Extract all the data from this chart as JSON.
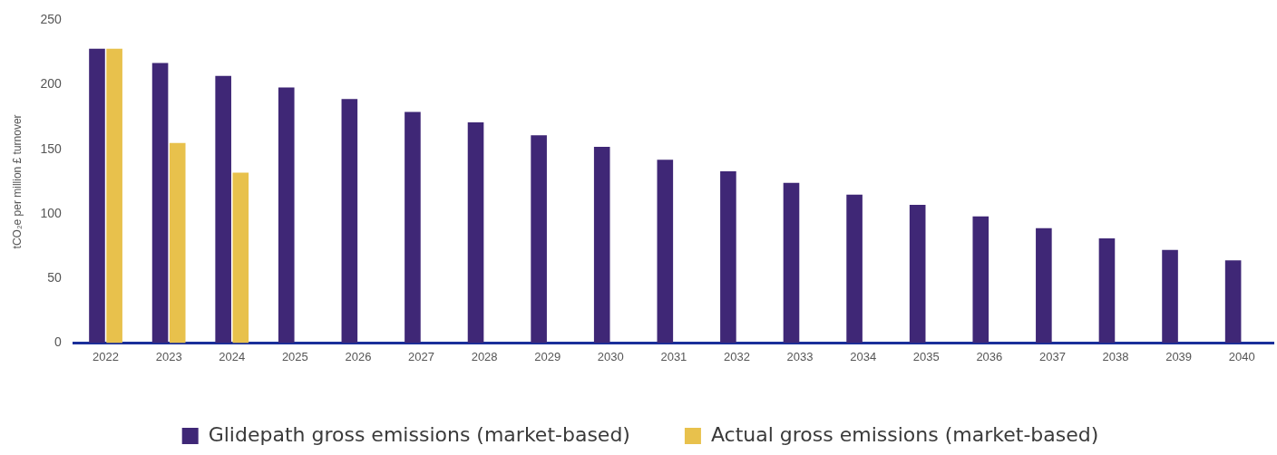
{
  "chart_data": {
    "type": "bar",
    "ylabel": "tCO₂e per million £ turnover",
    "categories": [
      "2022",
      "2023",
      "2024",
      "2025",
      "2026",
      "2027",
      "2028",
      "2029",
      "2030",
      "2031",
      "2032",
      "2033",
      "2034",
      "2035",
      "2036",
      "2037",
      "2038",
      "2039",
      "2040"
    ],
    "series": [
      {
        "name": "Glidepath gross emissions (market-based)",
        "color": "#3f2776",
        "values": [
          228,
          217,
          207,
          198,
          189,
          179,
          171,
          161,
          152,
          142,
          133,
          124,
          115,
          107,
          98,
          89,
          81,
          72,
          64
        ]
      },
      {
        "name": "Actual gross emissions (market-based)",
        "color": "#e8c14c",
        "values": [
          228,
          155,
          132,
          null,
          null,
          null,
          null,
          null,
          null,
          null,
          null,
          null,
          null,
          null,
          null,
          null,
          null,
          null,
          null
        ]
      }
    ],
    "ylim": [
      0,
      250
    ],
    "yticks": [
      0,
      50,
      100,
      150,
      200,
      250
    ],
    "grid": false,
    "legend": "bottom"
  }
}
